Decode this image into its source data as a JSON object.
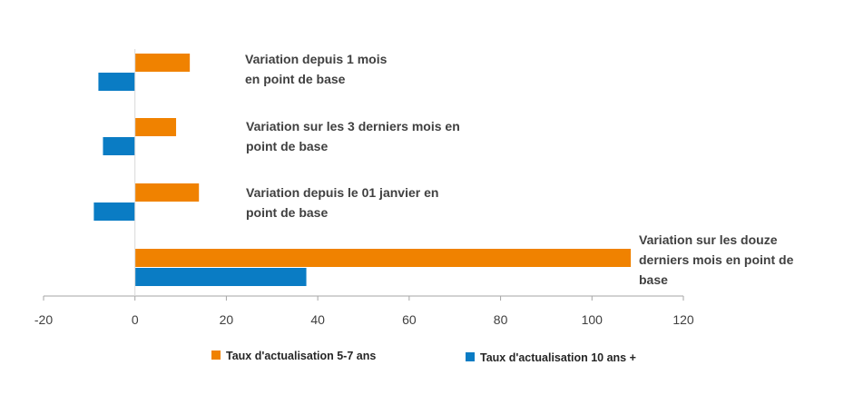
{
  "chart_data": {
    "type": "bar",
    "orientation": "horizontal",
    "categories": [
      [
        "Variation depuis 1 mois",
        "en point de base"
      ],
      [
        "Variation sur les 3 derniers mois en",
        "point de base"
      ],
      [
        "Variation depuis le 01 janvier en",
        "point de base"
      ],
      [
        "Variation sur les douze",
        "derniers mois en point de",
        "base"
      ]
    ],
    "series": [
      {
        "name": "Taux d'actualisation 5-7 ans",
        "color": "#F08200",
        "values": [
          12,
          9,
          14,
          108.5
        ]
      },
      {
        "name": "Taux d'actualisation 10 ans +",
        "color": "#0A7CC4",
        "values": [
          -8,
          -7,
          -9,
          37.5
        ]
      }
    ],
    "xlim": [
      -20,
      120
    ],
    "xticks": [
      -20,
      0,
      20,
      40,
      60,
      80,
      100,
      120
    ],
    "xlabel": "",
    "ylabel": "",
    "grid": false,
    "legend": "bottom"
  }
}
